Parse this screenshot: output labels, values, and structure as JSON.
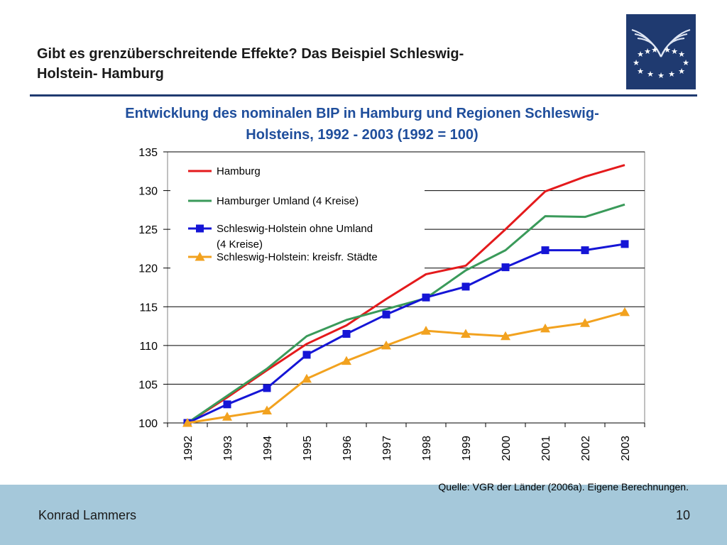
{
  "slide": {
    "title": "Gibt es grenzüberschreitende Effekte? Das Beispiel Schleswig-Holstein- Hamburg",
    "title_line1": "Gibt es grenzüberschreitende Effekte? Das Beispiel Schleswig-",
    "title_line2": "Holstein- Hamburg",
    "source": "Quelle: VGR der Länder (2006a). Eigene Berechnungen.",
    "author": "Konrad Lammers",
    "page_number": "10",
    "accent_color": "#1f3a70",
    "footer_color": "#a5c8da",
    "logo_icon": "eu-stars-logo"
  },
  "chart_data": {
    "type": "line",
    "title_line1": "Entwicklung des nominalen BIP in Hamburg und Regionen Schleswig-",
    "title_line2": "Holsteins, 1992 - 2003 (1992 = 100)",
    "x": [
      "1992",
      "1993",
      "1994",
      "1995",
      "1996",
      "1997",
      "1998",
      "1999",
      "2000",
      "2001",
      "2002",
      "2003"
    ],
    "ylim": [
      100,
      135
    ],
    "yticks": [
      100,
      105,
      110,
      115,
      120,
      125,
      130,
      135
    ],
    "grid": "horizontal",
    "legend_position": "top-left",
    "series": [
      {
        "name": "Hamburg",
        "color": "#e41a1c",
        "marker": "none",
        "values": [
          100,
          103.3,
          106.8,
          110.2,
          112.6,
          116.0,
          119.2,
          120.3,
          125.0,
          129.9,
          131.8,
          133.3
        ]
      },
      {
        "name": "Hamburger Umland (4 Kreise)",
        "color": "#3a9a5a",
        "marker": "none",
        "values": [
          100,
          103.5,
          107.0,
          111.2,
          113.3,
          114.7,
          116.1,
          119.7,
          122.3,
          126.7,
          126.6,
          128.2
        ]
      },
      {
        "name": "Schleswig-Holstein ohne Umland (4 Kreise)",
        "name_line1": "Schleswig-Holstein ohne Umland",
        "name_line2": "(4 Kreise)",
        "color": "#1515d6",
        "marker": "square",
        "values": [
          100,
          102.4,
          104.5,
          108.8,
          111.5,
          114.0,
          116.2,
          117.6,
          120.1,
          122.3,
          122.3,
          123.1
        ]
      },
      {
        "name": "Schleswig-Holstein: kreisfr. Städte",
        "color": "#f2a21f",
        "marker": "triangle",
        "values": [
          100,
          100.8,
          101.6,
          105.7,
          108.0,
          110.0,
          111.9,
          111.5,
          111.2,
          112.2,
          112.9,
          114.3
        ]
      }
    ]
  }
}
